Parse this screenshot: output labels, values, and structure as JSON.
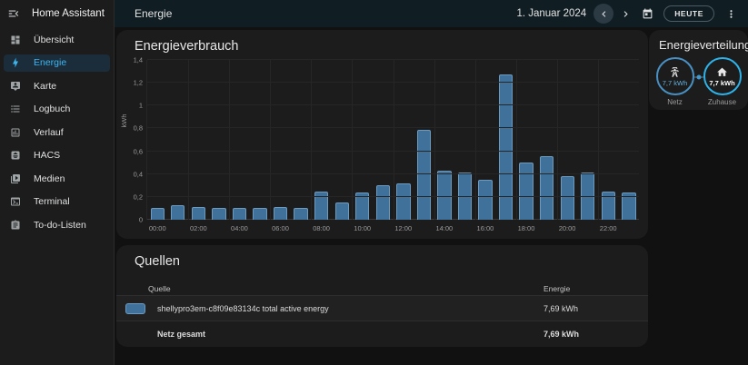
{
  "app": {
    "name": "Home Assistant"
  },
  "header": {
    "title": "Energie",
    "date": "1. Januar 2024",
    "today_button": "HEUTE"
  },
  "sidebar": {
    "items": [
      {
        "id": "uebersicht",
        "label": "Übersicht",
        "icon": "view-dashboard",
        "selected": false
      },
      {
        "id": "energie",
        "label": "Energie",
        "icon": "lightning-bolt",
        "selected": true
      },
      {
        "id": "karte",
        "label": "Karte",
        "icon": "tooltip-account",
        "selected": false
      },
      {
        "id": "logbuch",
        "label": "Logbuch",
        "icon": "format-list-bulleted",
        "selected": false
      },
      {
        "id": "verlauf",
        "label": "Verlauf",
        "icon": "chart-box",
        "selected": false
      },
      {
        "id": "hacs",
        "label": "HACS",
        "icon": "hacs",
        "selected": false
      },
      {
        "id": "medien",
        "label": "Medien",
        "icon": "play-box-multiple",
        "selected": false
      },
      {
        "id": "terminal",
        "label": "Terminal",
        "icon": "console",
        "selected": false
      },
      {
        "id": "todo-listen",
        "label": "To-do-Listen",
        "icon": "clipboard-text",
        "selected": false
      }
    ]
  },
  "consumption_card": {
    "title": "Energieverbrauch"
  },
  "distribution_card": {
    "title": "Energieverteilung",
    "nodes": [
      {
        "id": "grid",
        "icon": "transmission-tower",
        "value": "7,7 kWh",
        "label": "Netz",
        "border_color": "#488fc2",
        "value_color": "#64b0dd"
      },
      {
        "id": "home",
        "icon": "home",
        "value": "7,7 kWh",
        "label": "Zuhause",
        "border_color": "#2db3ea",
        "value_color": "#ffffff"
      }
    ]
  },
  "sources_card": {
    "title": "Quellen",
    "columns": {
      "source": "Quelle",
      "energy": "Energie"
    },
    "rows": [
      {
        "swatch": "#3f719b",
        "name": "shellypro3em-c8f09e83134c total active energy",
        "energy": "7,69 kWh",
        "bold": false
      },
      {
        "swatch": null,
        "name": "Netz gesamt",
        "energy": "7,69 kWh",
        "bold": true
      }
    ]
  },
  "chart_data": {
    "type": "bar",
    "title": "Energieverbrauch",
    "xlabel": "",
    "ylabel": "kWh",
    "ylim": [
      0,
      1.4
    ],
    "ytick_step": 0.2,
    "ytick_labels": [
      "0",
      "0,2",
      "0,4",
      "0,6",
      "0,8",
      "1",
      "1,2",
      "1,4"
    ],
    "x_tick_labels": [
      "00:00",
      "02:00",
      "04:00",
      "06:00",
      "08:00",
      "10:00",
      "12:00",
      "14:00",
      "16:00",
      "18:00",
      "20:00",
      "22:00"
    ],
    "categories": [
      "00:00",
      "01:00",
      "02:00",
      "03:00",
      "04:00",
      "05:00",
      "06:00",
      "07:00",
      "08:00",
      "09:00",
      "10:00",
      "11:00",
      "12:00",
      "13:00",
      "14:00",
      "15:00",
      "16:00",
      "17:00",
      "18:00",
      "19:00",
      "20:00",
      "21:00",
      "22:00",
      "23:00"
    ],
    "series": [
      {
        "name": "shellypro3em-c8f09e83134c total active energy",
        "unit": "kWh",
        "color": "#3f719b",
        "values": [
          0.1,
          0.13,
          0.11,
          0.1,
          0.1,
          0.1,
          0.11,
          0.1,
          0.25,
          0.15,
          0.24,
          0.3,
          0.32,
          0.79,
          0.43,
          0.41,
          0.35,
          1.27,
          0.5,
          0.56,
          0.38,
          0.41,
          0.25,
          0.24
        ]
      }
    ],
    "total": "7,69 kWh",
    "grid": true,
    "legend_position": "none"
  },
  "colors": {
    "accent": "#3fb5f0",
    "bar_fill": "#3f719b",
    "bar_border": "#6d9bc0",
    "header_background": "#101e24",
    "card_background": "#1c1c1c",
    "page_background": "#111111",
    "flow_dot": "#3d9ad1"
  }
}
